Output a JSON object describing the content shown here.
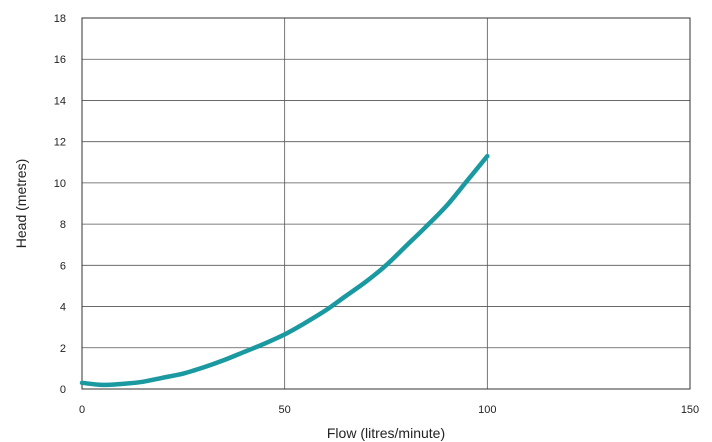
{
  "chart_data": {
    "type": "line",
    "xlabel": "Flow (litres/minute)",
    "ylabel": "Head (metres)",
    "xlim": [
      0,
      150
    ],
    "ylim": [
      0,
      18
    ],
    "x_ticks": [
      "0",
      "50",
      "100",
      "150"
    ],
    "y_ticks": [
      "0",
      "2",
      "4",
      "6",
      "8",
      "10",
      "12",
      "14",
      "16",
      "18"
    ],
    "grid": true,
    "legend": "none",
    "series": [
      {
        "color": "#1a9aa0",
        "x": [
          0,
          5,
          10,
          15,
          20,
          25,
          30,
          35,
          40,
          45,
          50,
          55,
          60,
          65,
          70,
          75,
          80,
          85,
          90,
          95,
          100
        ],
        "y": [
          0.3,
          0.2,
          0.25,
          0.35,
          0.55,
          0.75,
          1.05,
          1.4,
          1.8,
          2.2,
          2.65,
          3.2,
          3.8,
          4.5,
          5.2,
          6.0,
          6.95,
          7.9,
          8.9,
          10.1,
          11.3
        ]
      }
    ]
  }
}
